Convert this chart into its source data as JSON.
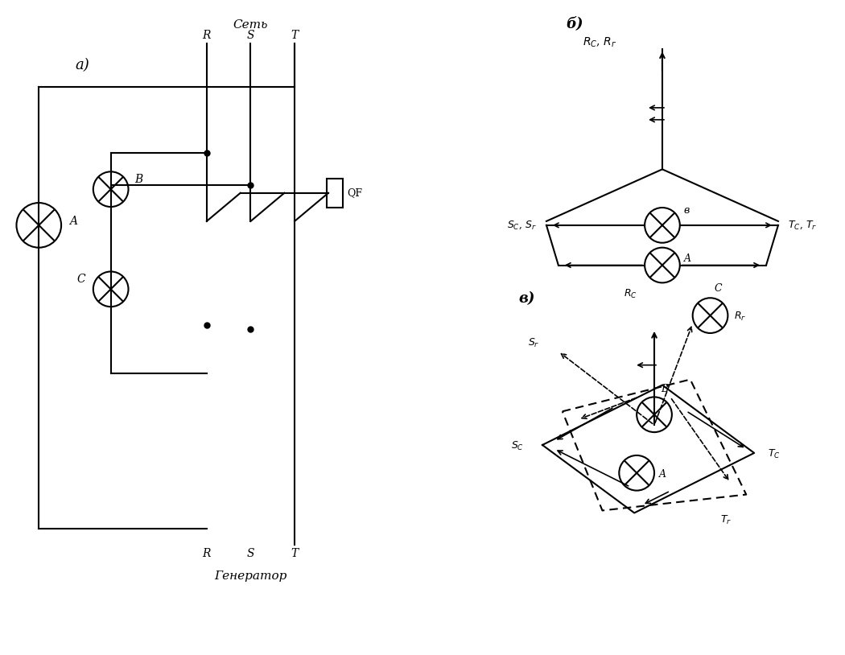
{
  "background_color": "#ffffff",
  "line_color": "#000000",
  "fig_width": 10.5,
  "fig_height": 8.14,
  "labels": {
    "set_label": "Сеть",
    "gen_label": "Генератор",
    "a_label": "а)",
    "b_label": "б)",
    "v_label": "в)"
  }
}
